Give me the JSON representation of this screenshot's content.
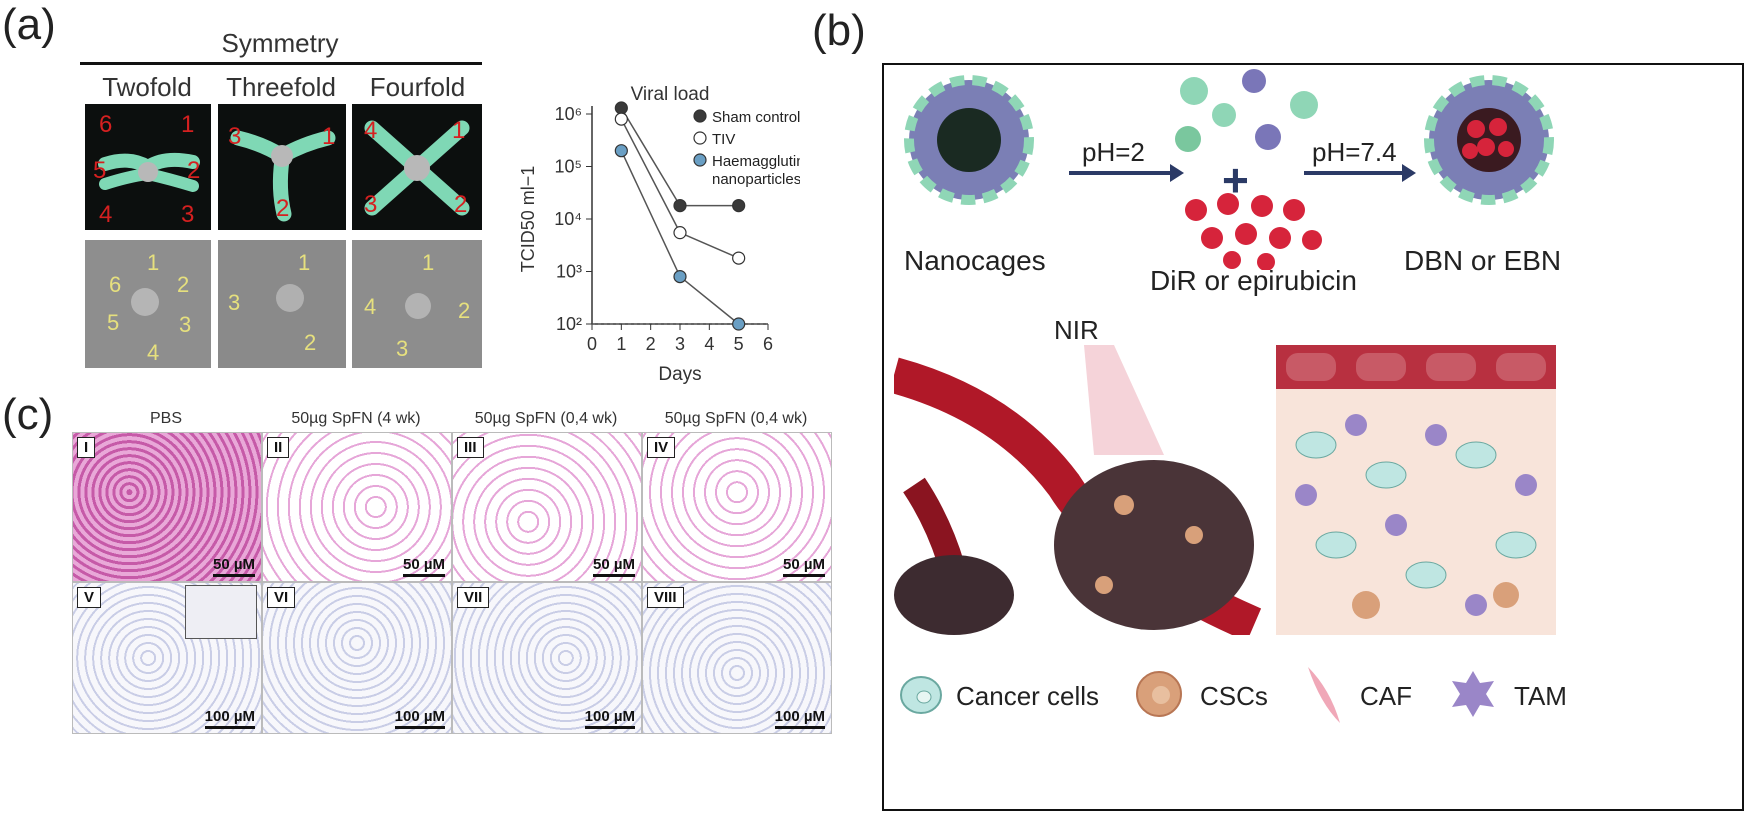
{
  "panels": {
    "a": {
      "letter": "(a)",
      "symmetry_title": "Symmetry",
      "columns": [
        "Twofold",
        "Threefold",
        "Fourfold"
      ],
      "model_numbers": {
        "twofold": [
          "6",
          "1",
          "5",
          "2",
          "4",
          "3"
        ],
        "threefold": [
          "3",
          "1",
          "2"
        ],
        "fourfold": [
          "4",
          "1",
          "3",
          "2"
        ]
      },
      "em_numbers": {
        "twofold": [
          "6",
          "1",
          "2",
          "5",
          "3",
          "4"
        ],
        "threefold": [
          "1",
          "3",
          "2"
        ],
        "fourfold": [
          "1",
          "4",
          "2",
          "3"
        ]
      }
    },
    "b": {
      "letter": "(b)",
      "nanocages_label": "Nanocages",
      "ph2_label": "pH=2",
      "ph74_label": "pH=7.4",
      "drug_label": "DiR or epirubicin",
      "product_label": "DBN or EBN",
      "nir_label": "NIR",
      "legend": [
        "Cancer cells",
        "CSCs",
        "CAF",
        "TAM"
      ]
    },
    "c": {
      "letter": "(c)",
      "column_headers": [
        "PBS",
        "50µg SpFN (4 wk)",
        "50µg SpFN (0,4 wk)",
        "50µg SpFN (0,4 wk)"
      ],
      "row1_labels": [
        "I",
        "II",
        "III",
        "IV"
      ],
      "row2_labels": [
        "V",
        "VI",
        "VII",
        "VIII"
      ],
      "row1_scale": "50 µM",
      "row2_scale": "100 µM"
    }
  },
  "colors": {
    "sham": "#3a3a3a",
    "tiv": "#ffffff",
    "nanoparticle": "#6a9fc4",
    "accent_green": "#7fd8b5",
    "he_pink": "#e6a6d8",
    "ihc_blue": "#dcdff0"
  },
  "chart_data": {
    "type": "line",
    "title": "Viral load",
    "xlabel": "Days",
    "ylabel": "TCID50 ml−1",
    "xlim": [
      0,
      6
    ],
    "ylim_log10": [
      2,
      6
    ],
    "log_y": true,
    "x_ticks": [
      "0",
      "1",
      "2",
      "3",
      "4",
      "5",
      "6"
    ],
    "y_ticks": [
      "10²",
      "10³",
      "10⁴",
      "10⁵",
      "10⁶"
    ],
    "legend_position": "top-right",
    "detection_limit": 100,
    "series": [
      {
        "name": "Sham control",
        "x": [
          1,
          3,
          5
        ],
        "y": [
          1300000,
          18000,
          18000
        ],
        "marker": "filled-dark"
      },
      {
        "name": "TIV",
        "x": [
          1,
          3,
          5
        ],
        "y": [
          800000,
          5500,
          1800
        ],
        "marker": "open"
      },
      {
        "name": "Haemagglutinin nanoparticles",
        "x": [
          1,
          3,
          5
        ],
        "y": [
          200000,
          800,
          100
        ],
        "marker": "filled-blue"
      }
    ]
  }
}
